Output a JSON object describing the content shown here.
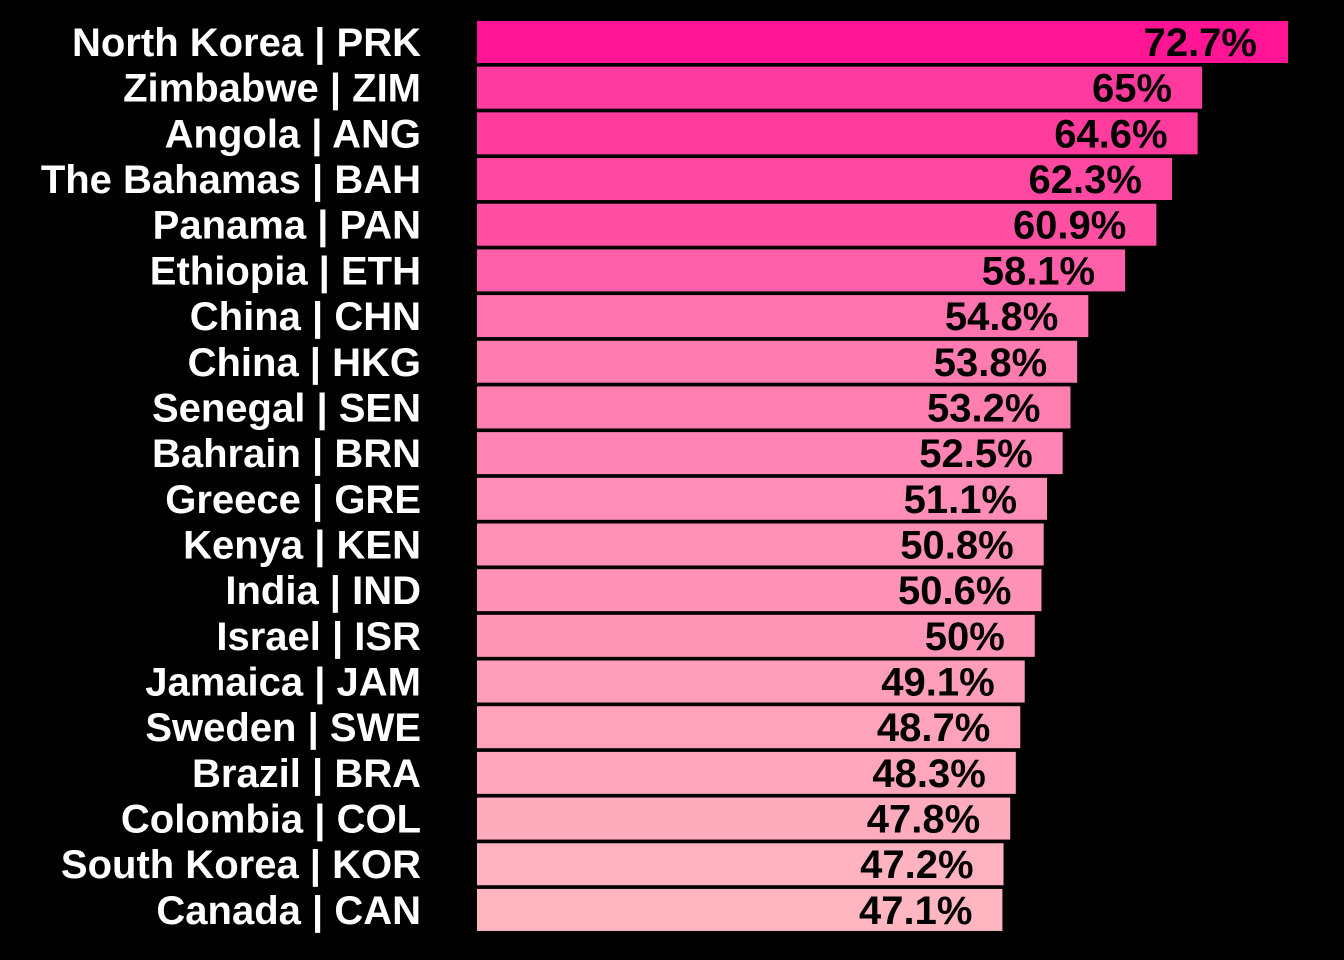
{
  "chart_data": {
    "type": "bar",
    "orientation": "horizontal",
    "title": "",
    "xlabel": "",
    "ylabel": "",
    "grid": false,
    "legend": "none",
    "background": "#000000",
    "color_high": "#FF1493",
    "color_low": "#FFB6C1",
    "categories": [
      "North Korea | PRK",
      "Zimbabwe | ZIM",
      "Angola | ANG",
      "The Bahamas | BAH",
      "Panama | PAN",
      "Ethiopia | ETH",
      "China | CHN",
      "China | HKG",
      "Senegal | SEN",
      "Bahrain | BRN",
      "Greece | GRE",
      "Kenya | KEN",
      "India | IND",
      "Israel | ISR",
      "Jamaica | JAM",
      "Sweden | SWE",
      "Brazil | BRA",
      "Colombia | COL",
      "South Korea | KOR",
      "Canada | CAN"
    ],
    "values": [
      72.7,
      65,
      64.6,
      62.3,
      60.9,
      58.1,
      54.8,
      53.8,
      53.2,
      52.5,
      51.1,
      50.8,
      50.6,
      50,
      49.1,
      48.7,
      48.3,
      47.8,
      47.2,
      47.1
    ],
    "value_labels": [
      "72.7%",
      "65%",
      "64.6%",
      "62.3%",
      "60.9%",
      "58.1%",
      "54.8%",
      "53.8%",
      "53.2%",
      "52.5%",
      "51.1%",
      "50.8%",
      "50.6%",
      "50%",
      "49.1%",
      "48.7%",
      "48.3%",
      "47.8%",
      "47.2%",
      "47.1%"
    ],
    "xlim": [
      0,
      72.7
    ]
  }
}
